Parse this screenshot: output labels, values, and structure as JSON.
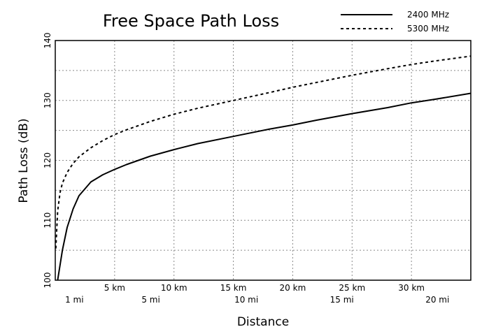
{
  "chart_data": {
    "type": "line",
    "title": "Free Space Path Loss",
    "xlabel": "Distance",
    "ylabel": "Path Loss (dB)",
    "xlim_km": [
      0,
      35
    ],
    "ylim": [
      100,
      140
    ],
    "y_ticks": [
      "100",
      "110",
      "120",
      "130",
      "140"
    ],
    "x_ticks_km": [
      {
        "value": 5,
        "label": "5 km"
      },
      {
        "value": 10,
        "label": "10 km"
      },
      {
        "value": 15,
        "label": "15 km"
      },
      {
        "value": 20,
        "label": "20 km"
      },
      {
        "value": 25,
        "label": "25 km"
      },
      {
        "value": 30,
        "label": "30 km"
      }
    ],
    "x_ticks_mi": [
      {
        "value": 1,
        "label": "1 mi"
      },
      {
        "value": 5,
        "label": "5 mi"
      },
      {
        "value": 10,
        "label": "10 mi"
      },
      {
        "value": 15,
        "label": "15 mi"
      },
      {
        "value": 20,
        "label": "20 mi"
      }
    ],
    "grid": true,
    "legend_position": "top-right",
    "series": [
      {
        "name": "2400 MHz",
        "style": "solid",
        "color": "#000000",
        "x_km": [
          0.2,
          0.6,
          1.0,
          1.5,
          2.0,
          3.0,
          4.0,
          5.0,
          6.0,
          8.0,
          10.0,
          12.0,
          15.0,
          18.0,
          20.0,
          22.0,
          25.0,
          28.0,
          30.0,
          32.0,
          35.0
        ],
        "y": [
          100.0,
          105.0,
          108.8,
          111.9,
          114.1,
          116.4,
          117.6,
          118.5,
          119.3,
          120.7,
          121.8,
          122.8,
          124.0,
          125.2,
          125.9,
          126.7,
          127.8,
          128.8,
          129.6,
          130.2,
          131.2
        ]
      },
      {
        "name": "5300 MHz",
        "style": "dashed",
        "color": "#000000",
        "x_km": [
          0.05,
          0.2,
          0.4,
          0.6,
          1.0,
          1.5,
          2.0,
          3.0,
          4.0,
          5.0,
          6.0,
          8.0,
          10.0,
          12.0,
          15.0,
          18.0,
          20.0,
          22.0,
          25.0,
          28.0,
          30.0,
          32.0,
          35.0
        ],
        "y": [
          105.3,
          111.5,
          114.6,
          116.2,
          118.0,
          119.5,
          120.6,
          122.1,
          123.3,
          124.3,
          125.1,
          126.5,
          127.7,
          128.7,
          130.0,
          131.3,
          132.2,
          133.0,
          134.2,
          135.3,
          136.0,
          136.6,
          137.4
        ]
      }
    ]
  }
}
